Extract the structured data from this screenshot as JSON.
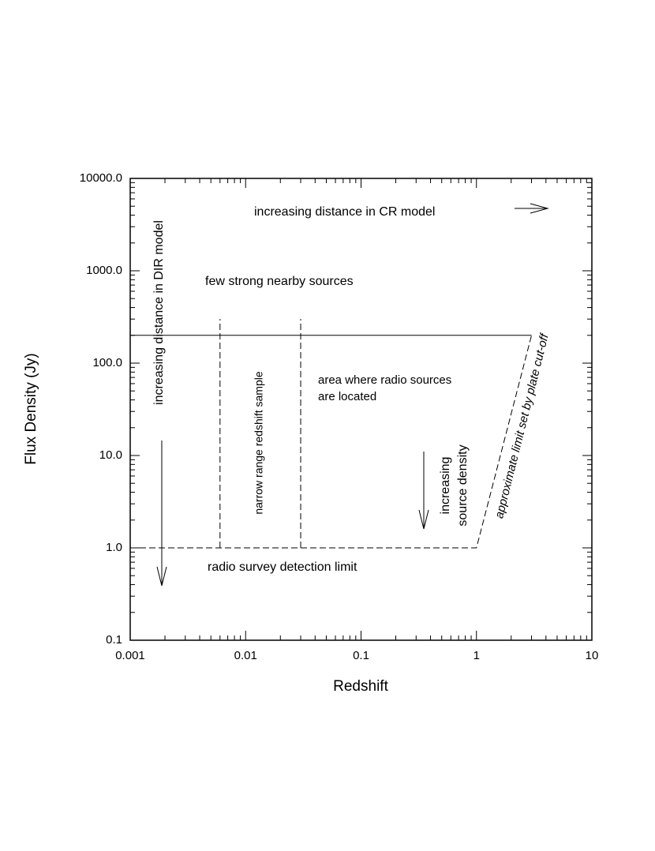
{
  "chart_data": {
    "type": "line",
    "xlabel": "Redshift",
    "ylabel": "Flux Density (Jy)",
    "xscale": "log",
    "yscale": "log",
    "xlim": [
      0.001,
      10
    ],
    "ylim": [
      0.1,
      10000
    ],
    "xticks": [
      0.001,
      0.01,
      0.1,
      1,
      10
    ],
    "yticks": [
      {
        "value": 0.1,
        "label": "0.1"
      },
      {
        "value": 1,
        "label": "1.0"
      },
      {
        "value": 10,
        "label": "10.0"
      },
      {
        "value": 100,
        "label": "100.0"
      },
      {
        "value": 1000,
        "label": "1000.0"
      },
      {
        "value": 10000,
        "label": "10000.0"
      }
    ],
    "color": "#000000",
    "series": [
      {
        "x": [
          0.001,
          3
        ],
        "values": [
          200,
          200
        ],
        "dashed": false
      },
      {
        "x": [
          0.001,
          1,
          3
        ],
        "values": [
          1,
          1,
          200
        ],
        "dashed": true
      },
      {
        "x": [
          0.006,
          0.006
        ],
        "values": [
          1,
          300
        ],
        "dashed": true
      },
      {
        "x": [
          0.03,
          0.03
        ],
        "values": [
          1,
          300
        ],
        "dashed": true
      }
    ],
    "annotations": [
      "increasing distance in CR model",
      "few strong nearby sources",
      "increasing distance in DIR model",
      "narrow range redshift sample",
      "area where radio sources",
      "are located",
      "increasing",
      "source density",
      "approximate limit set by plate cut-off",
      "radio survey detection limit"
    ]
  }
}
